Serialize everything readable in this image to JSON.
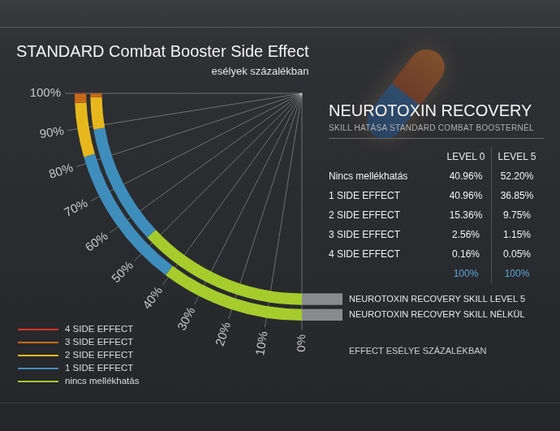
{
  "chart_data": {
    "type": "doughnut",
    "title": "STANDARD Combat Booster Side Effect",
    "subtitle": "esélyek százalékban",
    "ylabel": "EFFECT ESÉLYE SZÁZALÉKBAN",
    "categories": [
      "nincs mellékhatás",
      "1 SIDE EFFECT",
      "2 SIDE EFFECT",
      "3 SIDE EFFECT",
      "4 SIDE EFFECT"
    ],
    "colors": [
      "#a5cc2c",
      "#3f8dbb",
      "#e6b81e",
      "#c66a19",
      "#e2341f"
    ],
    "series": [
      {
        "name": "NEUROTOXIN RECOVERY SKILL NÉLKÜL",
        "values": [
          40.96,
          40.96,
          15.36,
          2.56,
          0.16
        ]
      },
      {
        "name": "NEUROTOXIN RECOVERY SKILL LEVEL 5",
        "values": [
          52.2,
          36.85,
          9.75,
          1.15,
          0.05
        ]
      }
    ],
    "ylim": [
      0,
      100
    ],
    "yticks": [
      {
        "value": 0,
        "label": "0%"
      },
      {
        "value": 10,
        "label": "10%"
      },
      {
        "value": 20,
        "label": "20%"
      },
      {
        "value": 30,
        "label": "30%"
      },
      {
        "value": 40,
        "label": "40%"
      },
      {
        "value": 50,
        "label": "50%"
      },
      {
        "value": 60,
        "label": "60%"
      },
      {
        "value": 70,
        "label": "70%"
      },
      {
        "value": 80,
        "label": "80%"
      },
      {
        "value": 90,
        "label": "90%"
      },
      {
        "value": 100,
        "label": "100%"
      }
    ],
    "grid": true,
    "legend": "lower left"
  },
  "table": {
    "title": "NEUROTOXIN RECOVERY",
    "subtitle": "SKILL HATÁSA STANDARD COMBAT BOOSTERNÉL",
    "columns": [
      "LEVEL 0",
      "LEVEL 5"
    ],
    "rows": [
      [
        "Nincs mellékhatás",
        "40.96%",
        "52.20%"
      ],
      [
        "1 SIDE EFFECT",
        "40.96%",
        "36.85%"
      ],
      [
        "2 SIDE EFFECT",
        "15.36%",
        "9.75%"
      ],
      [
        "3 SIDE EFFECT",
        "2.56%",
        "1.15%"
      ],
      [
        "4 SIDE EFFECT",
        "0.16%",
        "0.05%"
      ]
    ],
    "totals": [
      "100%",
      "100%"
    ]
  }
}
